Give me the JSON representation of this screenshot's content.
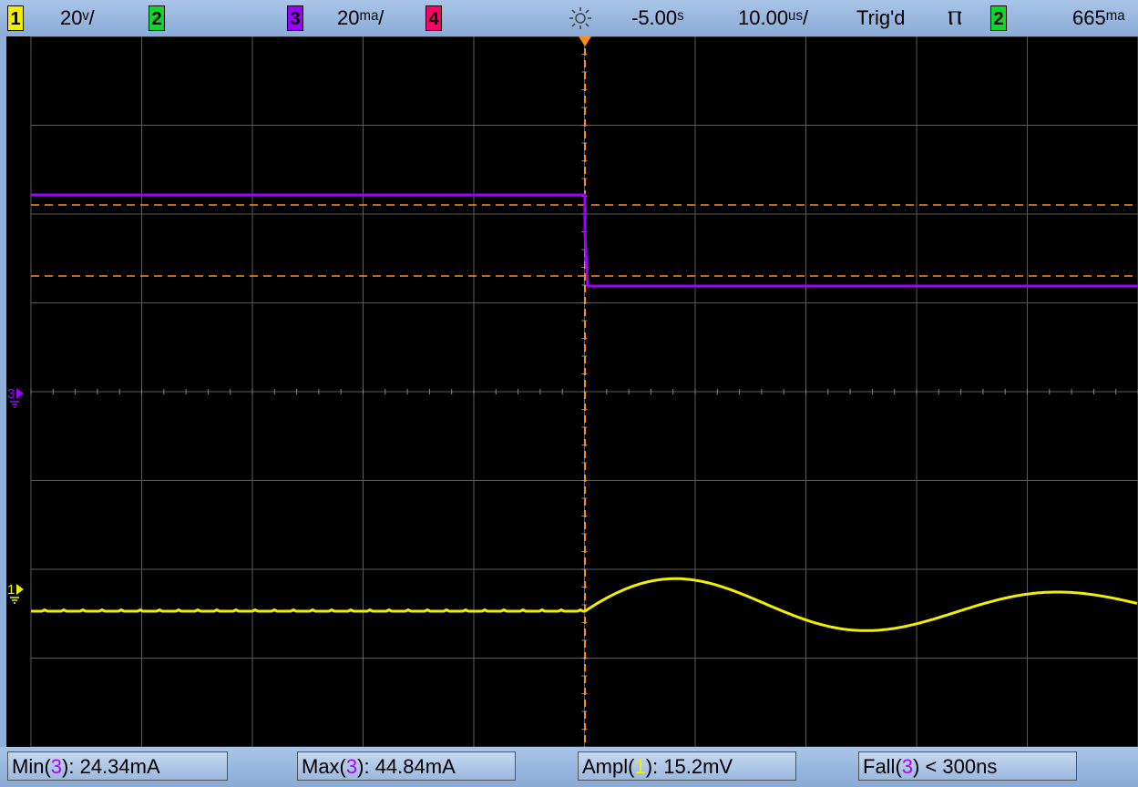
{
  "topbar": {
    "ch1_label": "1",
    "ch1_scale": "20ᵛ/",
    "ch2_label": "2",
    "ch3_label": "3",
    "ch3_scale": "20ᵐᵃ/",
    "ch4_label": "4",
    "delay": "-5.00ˢ",
    "timebase": "10.00ᵘˢ/",
    "trigger_status": "Trig'd",
    "trigger_slope_symbol": "Ⲡ",
    "trigger_source": "2",
    "trigger_level": "665ᵐᵃ"
  },
  "markers": {
    "ch3_marker": "3",
    "ch1_marker": "1"
  },
  "measurements": [
    {
      "name_prefix": "Min(",
      "channel": "3",
      "rest": "): 24.34mA"
    },
    {
      "name_prefix": "Max(",
      "channel": "3",
      "rest": "): 44.84mA"
    },
    {
      "name_prefix": "Ampl(",
      "channel": "1",
      "rest": "): 15.2mV"
    },
    {
      "name_prefix": "Fall(",
      "channel": "3",
      "rest": ") < 300ns"
    }
  ],
  "colors": {
    "ch1": "#f2ee00",
    "ch2": "#12d52a",
    "ch3": "#9c00ff",
    "ch4": "#ff0066",
    "cursor": "#ff8c1a",
    "grid": "#5a5a5a",
    "background": "#000000"
  },
  "traces": {
    "ch3_level_high": 44.84,
    "ch3_level_low": 24.34,
    "ch3_unit": "mA",
    "ch1_amplitude": 15.2,
    "ch1_unit": "mV"
  }
}
